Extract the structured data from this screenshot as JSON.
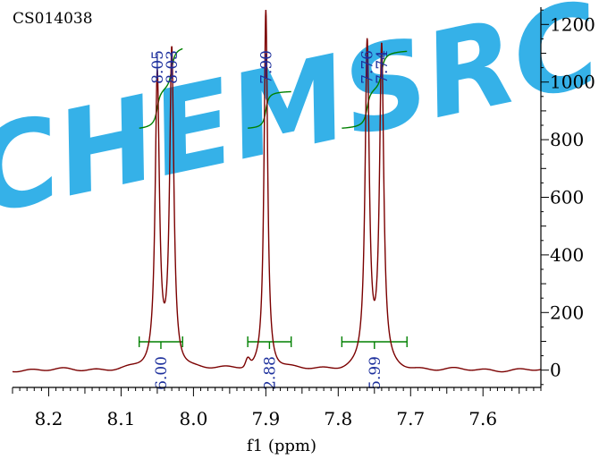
{
  "chart_data": {
    "type": "line",
    "title": "CS014038",
    "xlabel": "f1 (ppm)",
    "ylabel": "",
    "xlim": [
      8.25,
      7.52
    ],
    "ylim": [
      -60,
      1260
    ],
    "x_reversed": true,
    "x_ticks": [
      8.2,
      8.1,
      8.0,
      7.9,
      7.8,
      7.7,
      7.6
    ],
    "x_tick_labels": [
      "8.2",
      "8.1",
      "8.0",
      "7.9",
      "7.8",
      "7.7",
      "7.6"
    ],
    "y_ticks": [
      0,
      200,
      400,
      600,
      800,
      1000,
      1200
    ],
    "y_tick_labels": [
      "0",
      "200",
      "400",
      "600",
      "800",
      "1000",
      "1200"
    ],
    "y_axis_position": "right",
    "grid": false,
    "watermark": "CHEMSRC",
    "colors": {
      "spectrum": "#7b0000",
      "integral": "#008000",
      "peak_label": "#1c2f9c",
      "axis": "#000000"
    },
    "peaks": [
      {
        "ppm": 8.05,
        "height": 1010,
        "width": 0.0035,
        "label": "8.05"
      },
      {
        "ppm": 8.03,
        "height": 1100,
        "width": 0.0035,
        "label": "8.03"
      },
      {
        "ppm": 7.9,
        "height": 1250,
        "width": 0.003,
        "label": "7.90"
      },
      {
        "ppm": 7.76,
        "height": 1120,
        "width": 0.0035,
        "label": "7.76"
      },
      {
        "ppm": 7.74,
        "height": 1100,
        "width": 0.0035,
        "label": "7.74"
      }
    ],
    "integrals": [
      {
        "from": 8.075,
        "to": 8.015,
        "value": "6.00",
        "curve_start": 840,
        "curve_end": 1130
      },
      {
        "from": 7.925,
        "to": 7.865,
        "value": "2.88",
        "curve_start": 840,
        "curve_end": 970
      },
      {
        "from": 7.795,
        "to": 7.705,
        "value": "5.99",
        "curve_start": 840,
        "curve_end": 1110
      }
    ]
  }
}
